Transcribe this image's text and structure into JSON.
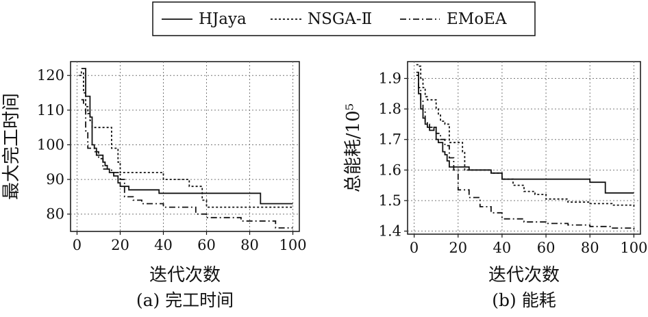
{
  "legend": {
    "items": [
      {
        "label": "HJaya",
        "dash": "solid"
      },
      {
        "label": "NSGA-Ⅱ",
        "dash": "dotted"
      },
      {
        "label": "EMoEA",
        "dash": "dashdot"
      }
    ]
  },
  "chart_data": [
    {
      "type": "line",
      "caption": "(a) 完工时间",
      "xlabel": "迭代次数",
      "ylabel": "最大完工时间",
      "xlim": [
        -3,
        103
      ],
      "ylim": [
        75,
        124
      ],
      "xticks": [
        0,
        20,
        40,
        60,
        80,
        100
      ],
      "yticks": [
        80,
        90,
        100,
        110,
        120
      ],
      "yticklabels": [
        "80",
        "90",
        "100",
        "110",
        "120"
      ],
      "grid": true,
      "series": [
        {
          "name": "HJaya",
          "dash": "solid",
          "x": [
            2,
            3,
            4,
            5,
            6,
            7,
            8,
            9,
            10,
            12,
            13,
            14,
            15,
            17,
            19,
            20,
            24,
            30,
            38,
            50,
            70,
            83,
            85,
            100
          ],
          "y": [
            122,
            122,
            114,
            114,
            108,
            100,
            99,
            97,
            97,
            95,
            94,
            93,
            92,
            91,
            89,
            88,
            87,
            87,
            86,
            86,
            86,
            86,
            83,
            83
          ]
        },
        {
          "name": "NSGA-Ⅱ",
          "dash": "dotted",
          "x": [
            1,
            2,
            3,
            4,
            5,
            6,
            7,
            9,
            12,
            15,
            16,
            19,
            20,
            30,
            40,
            48,
            52,
            58,
            60,
            80,
            100
          ],
          "y": [
            120,
            121,
            115,
            111,
            109,
            107,
            105,
            105,
            105,
            105,
            99,
            95,
            92,
            92,
            90,
            90,
            88,
            84,
            82,
            82,
            82
          ]
        },
        {
          "name": "EMoEA",
          "dash": "dashdot",
          "x": [
            2,
            3,
            4,
            5,
            6,
            8,
            10,
            12,
            14,
            16,
            20,
            22,
            26,
            30,
            40,
            55,
            60,
            72,
            76,
            92,
            100
          ],
          "y": [
            113,
            112,
            104,
            99,
            99,
            98,
            96,
            93,
            93,
            92,
            90,
            85,
            84,
            83,
            82,
            80,
            79,
            79,
            78,
            76,
            76
          ]
        }
      ]
    },
    {
      "type": "line",
      "caption": "(b) 能耗",
      "xlabel": "迭代次数",
      "ylabel": "总能耗/10⁵",
      "xlim": [
        -3,
        103
      ],
      "ylim": [
        1.39,
        1.955
      ],
      "xticks": [
        0,
        20,
        40,
        60,
        80,
        100
      ],
      "yticks": [
        1.4,
        1.5,
        1.6,
        1.7,
        1.8,
        1.9
      ],
      "yticklabels": [
        "1.4",
        "1.5",
        "1.6",
        "1.7",
        "1.8",
        "1.9"
      ],
      "grid": true,
      "series": [
        {
          "name": "HJaya",
          "dash": "solid",
          "x": [
            1,
            2,
            3,
            4,
            5,
            6,
            7,
            8,
            9,
            10,
            11,
            12,
            13,
            14,
            15,
            16,
            20,
            25,
            30,
            35,
            40,
            50,
            60,
            70,
            75,
            80,
            83,
            87,
            100
          ],
          "y": [
            1.91,
            1.85,
            1.8,
            1.77,
            1.75,
            1.74,
            1.73,
            1.73,
            1.74,
            1.7,
            1.69,
            1.69,
            1.66,
            1.65,
            1.63,
            1.61,
            1.61,
            1.6,
            1.6,
            1.59,
            1.57,
            1.57,
            1.57,
            1.57,
            1.57,
            1.56,
            1.56,
            1.525,
            1.525
          ]
        },
        {
          "name": "NSGA-Ⅱ",
          "dash": "dotted",
          "x": [
            1,
            2,
            3,
            4,
            5,
            6,
            7,
            8,
            10,
            11,
            12,
            14,
            16,
            18,
            19,
            20,
            22,
            23,
            25,
            30,
            35,
            40,
            45,
            50,
            55,
            60,
            70,
            80,
            90,
            100
          ],
          "y": [
            1.945,
            1.94,
            1.9,
            1.87,
            1.84,
            1.83,
            1.83,
            1.83,
            1.8,
            1.78,
            1.76,
            1.75,
            1.69,
            1.69,
            1.69,
            1.69,
            1.66,
            1.6,
            1.6,
            1.6,
            1.59,
            1.57,
            1.55,
            1.53,
            1.52,
            1.505,
            1.495,
            1.49,
            1.485,
            1.48
          ]
        },
        {
          "name": "EMoEA",
          "dash": "dashdot",
          "x": [
            1,
            2,
            3,
            4,
            5,
            6,
            7,
            8,
            9,
            10,
            12,
            14,
            16,
            18,
            20,
            25,
            30,
            35,
            40,
            50,
            60,
            70,
            80,
            90,
            100
          ],
          "y": [
            1.92,
            1.87,
            1.83,
            1.79,
            1.76,
            1.75,
            1.74,
            1.74,
            1.74,
            1.72,
            1.7,
            1.68,
            1.64,
            1.6,
            1.535,
            1.51,
            1.48,
            1.46,
            1.44,
            1.43,
            1.425,
            1.42,
            1.415,
            1.41,
            1.405
          ]
        }
      ]
    }
  ]
}
